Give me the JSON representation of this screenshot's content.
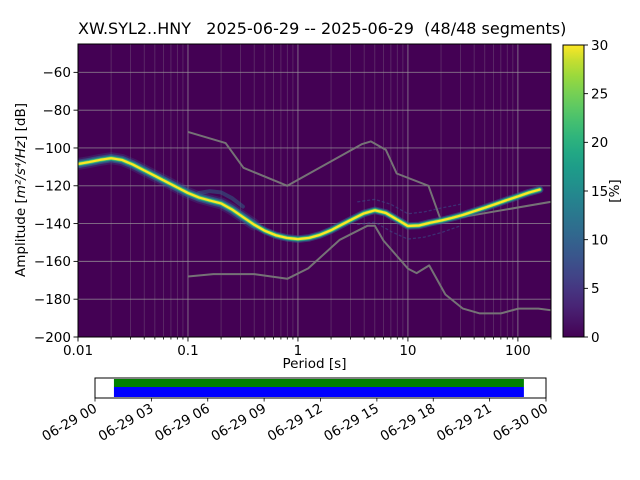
{
  "title": "XW.SYL2..HNY   2025-06-29 -- 2025-06-29  (48/48 segments)",
  "chart_data": {
    "type": "heatmap",
    "subtype": "probabilistic-power-spectral-density",
    "title": "XW.SYL2..HNY   2025-06-29 -- 2025-06-29  (48/48 segments)",
    "xlabel": "Period [s]",
    "ylabel": "Amplitude [m²/s⁴/Hz] [dB]",
    "ylabel_parts": {
      "prefix": "Amplitude [",
      "math": "m²/s⁴/Hz",
      "suffix": "] [dB]"
    },
    "xscale": "log",
    "xlim": [
      0.01,
      200
    ],
    "ylim": [
      -200,
      -45
    ],
    "xticks": [
      0.01,
      0.1,
      1,
      10,
      100
    ],
    "xtick_labels": [
      "0.01",
      "0.1",
      "1",
      "10",
      "100"
    ],
    "yticks": [
      -200,
      -180,
      -160,
      -140,
      -120,
      -100,
      -80,
      -60
    ],
    "ytick_labels": [
      "−200",
      "−180",
      "−160",
      "−140",
      "−120",
      "−100",
      "−80",
      "−60"
    ],
    "grid": true,
    "background_color": "#440154",
    "colorbar": {
      "label": "[%]",
      "min": 0,
      "max": 30,
      "ticks": [
        0,
        5,
        10,
        15,
        20,
        25,
        30
      ],
      "tick_labels": [
        "0",
        "5",
        "10",
        "15",
        "20",
        "25",
        "30"
      ],
      "colormap": "viridis",
      "gradient": [
        "#440154",
        "#471365",
        "#482475",
        "#463480",
        "#414487",
        "#3b528b",
        "#355f8d",
        "#2f6c8e",
        "#2a788e",
        "#25848e",
        "#21918c",
        "#1e9c89",
        "#22a884",
        "#2fb47c",
        "#44bf70",
        "#5ec962",
        "#7ad151",
        "#9bd93c",
        "#c5de30",
        "#fde725"
      ]
    },
    "psd_mode_curve": {
      "description": "most-probable PSD ridge (period s, amplitude dB)",
      "points": [
        [
          0.01,
          -108.5
        ],
        [
          0.0126,
          -107.5
        ],
        [
          0.0158,
          -106.3
        ],
        [
          0.02,
          -105.4
        ],
        [
          0.025,
          -106.3
        ],
        [
          0.0316,
          -108.8
        ],
        [
          0.0398,
          -111.8
        ],
        [
          0.05,
          -114.8
        ],
        [
          0.0631,
          -117.8
        ],
        [
          0.0794,
          -120.8
        ],
        [
          0.1,
          -123.8
        ],
        [
          0.126,
          -126.2
        ],
        [
          0.158,
          -127.8
        ],
        [
          0.2,
          -129.3
        ],
        [
          0.251,
          -132.5
        ],
        [
          0.316,
          -136.5
        ],
        [
          0.398,
          -140.5
        ],
        [
          0.501,
          -143.8
        ],
        [
          0.631,
          -146.2
        ],
        [
          0.794,
          -147.6
        ],
        [
          1.0,
          -148.2
        ],
        [
          1.26,
          -147.6
        ],
        [
          1.58,
          -146.0
        ],
        [
          2.0,
          -143.5
        ],
        [
          2.51,
          -140.5
        ],
        [
          3.16,
          -137.5
        ],
        [
          3.98,
          -134.6
        ],
        [
          5.01,
          -133.0
        ],
        [
          6.31,
          -134.4
        ],
        [
          7.94,
          -137.8
        ],
        [
          10.0,
          -141.3
        ],
        [
          12.6,
          -141.0
        ],
        [
          15.8,
          -139.6
        ],
        [
          20.0,
          -138.4
        ],
        [
          25.1,
          -137.0
        ],
        [
          31.6,
          -135.4
        ],
        [
          39.8,
          -133.5
        ],
        [
          50.1,
          -131.6
        ],
        [
          63.1,
          -129.6
        ],
        [
          79.4,
          -127.6
        ],
        [
          100,
          -125.6
        ],
        [
          126,
          -123.6
        ],
        [
          158,
          -122.0
        ]
      ]
    },
    "noise_models": {
      "color": "#787878",
      "high": [
        [
          0.1,
          -91.5
        ],
        [
          0.22,
          -97.4
        ],
        [
          0.32,
          -110.5
        ],
        [
          0.8,
          -120.0
        ],
        [
          3.8,
          -98.0
        ],
        [
          4.6,
          -96.5
        ],
        [
          6.3,
          -101.0
        ],
        [
          7.9,
          -113.5
        ],
        [
          15.4,
          -120.0
        ],
        [
          20.0,
          -138.5
        ],
        [
          354.8,
          -126.0
        ]
      ],
      "low": [
        [
          0.1,
          -168.0
        ],
        [
          0.17,
          -166.7
        ],
        [
          0.4,
          -166.7
        ],
        [
          0.8,
          -169.2
        ],
        [
          1.24,
          -163.7
        ],
        [
          2.4,
          -148.6
        ],
        [
          4.3,
          -141.1
        ],
        [
          5.0,
          -141.1
        ],
        [
          6.0,
          -149.0
        ],
        [
          10.0,
          -163.8
        ],
        [
          12.0,
          -166.2
        ],
        [
          15.6,
          -162.1
        ],
        [
          21.9,
          -177.5
        ],
        [
          31.6,
          -185.0
        ],
        [
          45.0,
          -187.5
        ],
        [
          70.0,
          -187.5
        ],
        [
          101.0,
          -185.0
        ],
        [
          154.0,
          -185.0
        ],
        [
          328.0,
          -187.5
        ]
      ]
    },
    "style": {
      "band_layers": [
        {
          "color": "#3b528b",
          "width": 12,
          "opacity": 0.3,
          "range": [
            0.01,
            0.4
          ]
        },
        {
          "color": "#2c728e",
          "width": 8.5,
          "opacity": 0.45,
          "range": [
            0.01,
            0.45
          ]
        },
        {
          "color": "#355f8d",
          "width": 7.5,
          "opacity": 0.55
        },
        {
          "color": "#1f988b",
          "width": 5.2,
          "opacity": 0.85
        },
        {
          "color": "#5ec962",
          "width": 3.4,
          "opacity": 0.95
        },
        {
          "color": "#fde725",
          "width": 2.2,
          "opacity": 1
        }
      ],
      "extra_traces": [
        {
          "name": "percentile-upper",
          "points": [
            [
              3.5,
              -128.5
            ],
            [
              5,
              -127.2
            ],
            [
              7,
              -129.8
            ],
            [
              10,
              -134.8
            ],
            [
              14,
              -133.8
            ],
            [
              20,
              -131.8
            ],
            [
              30,
              -129.8
            ]
          ],
          "color": "#3b528b",
          "width": 1.3,
          "opacity": 0.55,
          "dash": "2 3"
        },
        {
          "name": "percentile-lower",
          "points": [
            [
              3.5,
              -140.5
            ],
            [
              5,
              -139.2
            ],
            [
              7,
              -144.2
            ],
            [
              10,
              -148.2
            ],
            [
              14,
              -147.2
            ],
            [
              20,
              -144.8
            ],
            [
              30,
              -141.2
            ]
          ],
          "color": "#3b528b",
          "width": 1.3,
          "opacity": 0.55,
          "dash": "2 3"
        },
        {
          "name": "secondary-mode-0.2s",
          "points": [
            [
              0.126,
              -123.8
            ],
            [
              0.158,
              -122.8
            ],
            [
              0.2,
              -123.5
            ],
            [
              0.251,
              -126.5
            ],
            [
              0.316,
              -131.0
            ]
          ],
          "color": "#2c728e",
          "width": 4,
          "opacity": 0.45
        }
      ]
    },
    "timeline": {
      "labels": [
        "06-29 00",
        "06-29 03",
        "06-29 06",
        "06-29 09",
        "06-29 12",
        "06-29 15",
        "06-29 18",
        "06-29 21",
        "06-30 00"
      ],
      "coverage_start_frac": 0.042,
      "coverage_end_frac": 0.951,
      "stripe_colors": [
        "#008000",
        "#0000ff"
      ]
    }
  }
}
